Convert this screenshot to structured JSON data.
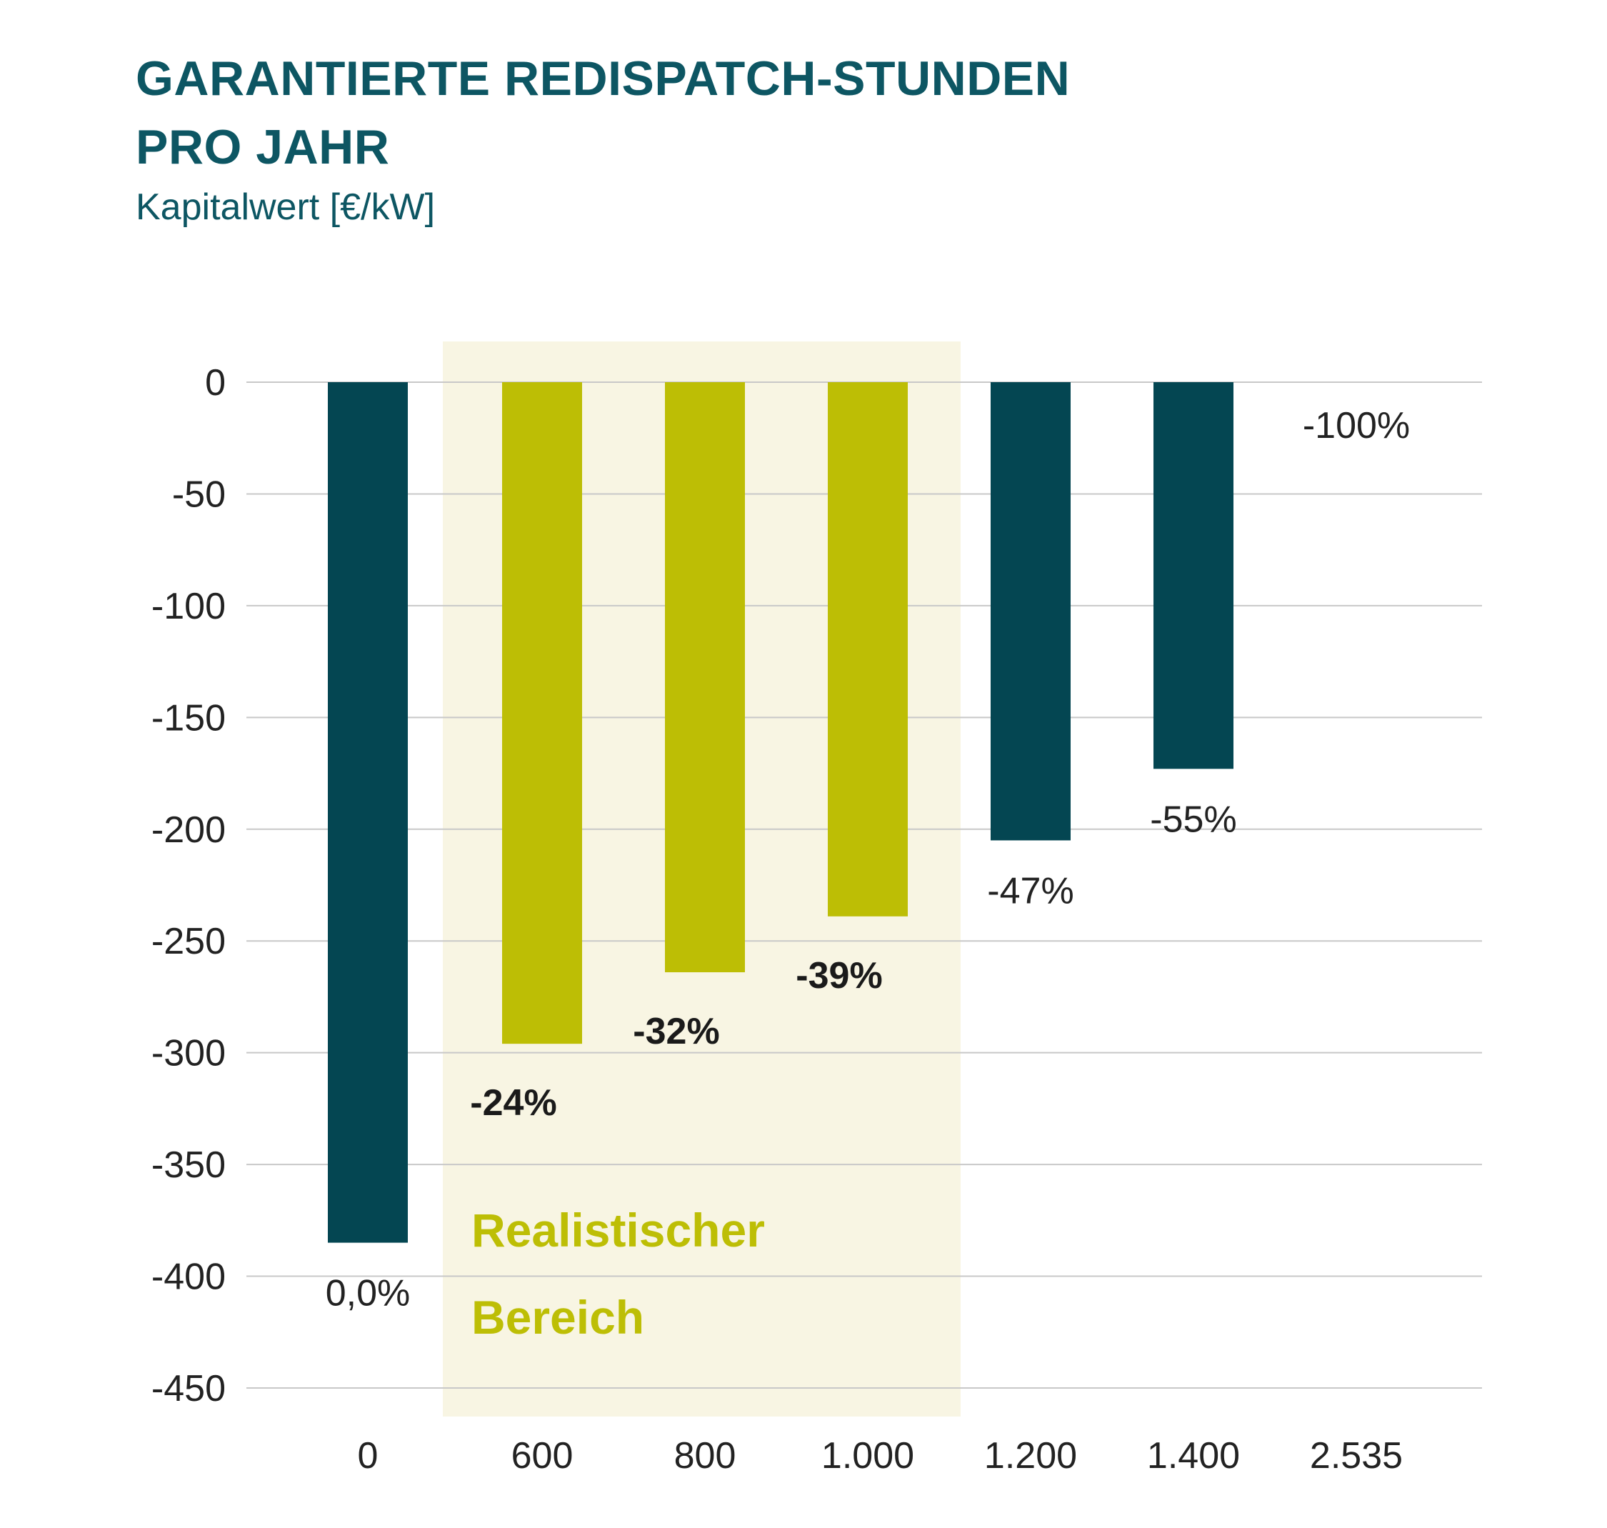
{
  "header": {
    "title": "GARANTIERTE REDISPATCH-STUNDEN\nPRO JAHR",
    "subtitle": "Kapitalwert [€/kW]"
  },
  "colors": {
    "title": "#0d5663",
    "bar_dark": "#044652",
    "bar_highlight": "#bdbe05",
    "highlight_band": "#f8f5e3",
    "grid": "#c8c8c8",
    "text": "#222222"
  },
  "chart_data": {
    "type": "bar",
    "title": "GARANTIERTE REDISPATCH-STUNDEN PRO JAHR",
    "ylabel": "Kapitalwert [€/kW]",
    "xlabel": "",
    "categories": [
      "0",
      "600",
      "800",
      "1.000",
      "1.200",
      "1.400",
      "2.535"
    ],
    "values": [
      -385,
      -296,
      -264,
      -239,
      -205,
      -173,
      0
    ],
    "labels": [
      "0,0%",
      "-24%",
      "-32%",
      "-39%",
      "-47%",
      "-55%",
      "-100%"
    ],
    "label_bold": [
      false,
      true,
      true,
      true,
      false,
      false,
      false
    ],
    "bar_style": [
      "dark",
      "highlight",
      "highlight",
      "highlight",
      "dark",
      "dark",
      "dark"
    ],
    "ylim": [
      -450,
      0
    ],
    "yticks": [
      0,
      -50,
      -100,
      -150,
      -200,
      -250,
      -300,
      -350,
      -400,
      -450
    ],
    "ytick_labels": [
      "0",
      "-50",
      "-100",
      "-150",
      "-200",
      "-250",
      "-300",
      "-350",
      "-400",
      "-450"
    ],
    "grid": true,
    "highlight_region": {
      "categories": [
        "600",
        "800",
        "1.000"
      ],
      "label_lines": [
        "Realistischer",
        "Bereich"
      ]
    }
  }
}
